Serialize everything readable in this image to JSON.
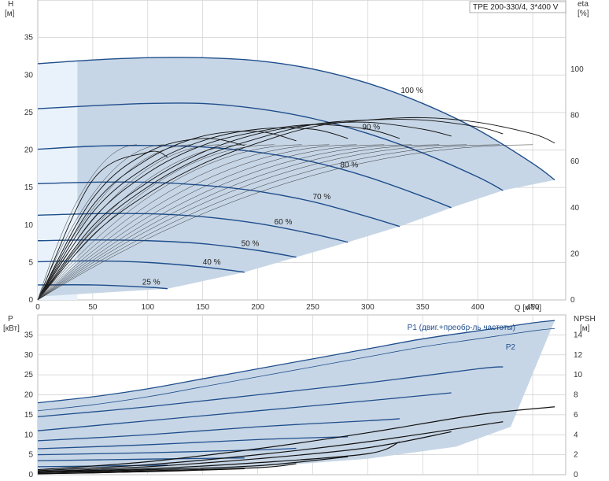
{
  "chart_title": "TPE 200-330/4, 3*400 V",
  "top": {
    "ylabel_left_name": "H",
    "ylabel_left_unit": "[м]",
    "ylabel_right_name": "eta",
    "ylabel_right_unit": "[%]",
    "xlabel": "Q [м³/ч]",
    "x_ticks": [
      "0",
      "50",
      "100",
      "150",
      "200",
      "250",
      "300",
      "350",
      "400",
      "450"
    ],
    "y_left_ticks": [
      "0",
      "5",
      "10",
      "15",
      "20",
      "25",
      "30",
      "35"
    ],
    "y_right_ticks": [
      "0",
      "20",
      "40",
      "60",
      "80",
      "100"
    ]
  },
  "bottom": {
    "ylabel_left_name": "P",
    "ylabel_left_unit": "[кВт]",
    "ylabel_right_name": "NPSH",
    "ylabel_right_unit": "[м]",
    "y_left_ticks": [
      "0",
      "5",
      "10",
      "15",
      "20",
      "25",
      "30",
      "35"
    ],
    "y_right_ticks": [
      "0",
      "2",
      "4",
      "6",
      "8",
      "10",
      "12",
      "14"
    ],
    "series_p1_label": "P1 (двиг.+преобр-ль частоты)",
    "series_p2_label": "P2"
  },
  "colors": {
    "region_fill": "#c7d6e6",
    "region_light": "#e9f2fb",
    "curve_blue": "#1f4e8c",
    "efficiency_black": "#111111",
    "grid": "#cfcfcf"
  },
  "chart_data": [
    {
      "type": "line",
      "title": "TPE 200-330/4, 3*400 V",
      "xlabel": "Q [м³/ч]",
      "ylabel": "H [м]",
      "y2label": "eta [%]",
      "xlim": [
        0,
        480
      ],
      "ylim": [
        0,
        40
      ],
      "y2lim": [
        0,
        130
      ],
      "grid": true,
      "head_curves": [
        {
          "label": "100 %",
          "x": [
            0,
            50,
            100,
            150,
            200,
            250,
            300,
            350,
            400,
            450,
            470
          ],
          "y": [
            31.5,
            32.0,
            32.3,
            32.3,
            31.9,
            30.8,
            28.9,
            26.2,
            22.7,
            18.2,
            16.0
          ]
        },
        {
          "label": "90 %",
          "x": [
            0,
            50,
            100,
            150,
            200,
            250,
            300,
            350,
            400,
            423
          ],
          "y": [
            25.5,
            25.9,
            26.2,
            26.2,
            25.5,
            24.2,
            22.2,
            19.6,
            16.4,
            14.6
          ]
        },
        {
          "label": "80 %",
          "x": [
            0,
            50,
            100,
            150,
            200,
            250,
            300,
            350,
            376
          ],
          "y": [
            20.1,
            20.5,
            20.6,
            20.4,
            19.7,
            18.4,
            16.4,
            13.8,
            12.3
          ]
        },
        {
          "label": "70 %",
          "x": [
            0,
            50,
            100,
            150,
            200,
            250,
            300,
            329
          ],
          "y": [
            15.5,
            15.7,
            15.7,
            15.3,
            14.5,
            13.1,
            11.1,
            9.8
          ]
        },
        {
          "label": "60 %",
          "x": [
            0,
            50,
            100,
            150,
            200,
            250,
            282
          ],
          "y": [
            11.3,
            11.5,
            11.5,
            11.1,
            10.2,
            8.8,
            7.7
          ]
        },
        {
          "label": "50 %",
          "x": [
            0,
            50,
            100,
            150,
            200,
            235
          ],
          "y": [
            7.9,
            8.0,
            7.9,
            7.5,
            6.6,
            5.7
          ]
        },
        {
          "label": "40 %",
          "x": [
            0,
            50,
            100,
            150,
            188
          ],
          "y": [
            5.1,
            5.2,
            5.0,
            4.4,
            3.7
          ]
        },
        {
          "label": "25 %",
          "x": [
            0,
            50,
            100,
            118
          ],
          "y": [
            2.0,
            2.0,
            1.7,
            1.5
          ]
        }
      ],
      "efficiency_curves": [
        {
          "x": [
            0,
            50,
            100,
            150,
            200,
            250,
            300,
            350,
            400,
            450,
            470
          ],
          "y": [
            0,
            28,
            46,
            59,
            68,
            75,
            78,
            79,
            77,
            72,
            68
          ]
        },
        {
          "x": [
            0,
            50,
            100,
            150,
            200,
            250,
            300,
            350,
            400,
            423
          ],
          "y": [
            0,
            30,
            49,
            62,
            70,
            76,
            78,
            78,
            75,
            72
          ]
        },
        {
          "x": [
            0,
            50,
            100,
            150,
            200,
            250,
            300,
            350,
            376
          ],
          "y": [
            0,
            32,
            51,
            64,
            72,
            76,
            77,
            74,
            71
          ]
        },
        {
          "x": [
            0,
            50,
            100,
            150,
            200,
            250,
            300,
            329
          ],
          "y": [
            0,
            35,
            55,
            67,
            73,
            76,
            74,
            70
          ]
        },
        {
          "x": [
            0,
            50,
            100,
            150,
            200,
            250,
            282
          ],
          "y": [
            0,
            38,
            58,
            69,
            74,
            74,
            70
          ]
        },
        {
          "x": [
            0,
            50,
            100,
            150,
            200,
            235
          ],
          "y": [
            0,
            41,
            61,
            71,
            73,
            69
          ]
        },
        {
          "x": [
            0,
            50,
            100,
            150,
            188
          ],
          "y": [
            0,
            44,
            64,
            70,
            67
          ]
        },
        {
          "x": [
            0,
            50,
            100,
            118
          ],
          "y": [
            0,
            52,
            64,
            62
          ]
        }
      ]
    },
    {
      "type": "area",
      "xlabel": "Q [м³/ч]",
      "ylabel": "P [кВт]",
      "y2label": "NPSH [м]",
      "xlim": [
        0,
        480
      ],
      "ylim": [
        0,
        40
      ],
      "y2lim": [
        0,
        16
      ],
      "grid": true,
      "power_p1": [
        {
          "x": [
            0,
            50,
            100,
            150,
            200,
            250,
            300,
            350,
            400,
            450,
            470
          ],
          "y": [
            18.0,
            19.5,
            21.5,
            24.0,
            26.5,
            29.0,
            31.5,
            34.0,
            36.0,
            38.0,
            38.6
          ]
        },
        {
          "x": [
            0,
            100,
            200,
            300,
            400,
            423
          ],
          "y": [
            14.5,
            17.0,
            20.0,
            23.0,
            26.5,
            27.0
          ]
        },
        {
          "x": [
            0,
            100,
            200,
            300,
            376
          ],
          "y": [
            11.0,
            13.5,
            16.0,
            18.5,
            20.5
          ]
        },
        {
          "x": [
            0,
            100,
            200,
            300,
            329
          ],
          "y": [
            8.5,
            10.0,
            12.0,
            13.5,
            14.0
          ]
        },
        {
          "x": [
            0,
            100,
            200,
            282
          ],
          "y": [
            6.5,
            7.5,
            8.8,
            9.5
          ]
        },
        {
          "x": [
            0,
            100,
            200,
            235
          ],
          "y": [
            5.0,
            5.5,
            6.2,
            6.6
          ]
        },
        {
          "x": [
            0,
            100,
            188
          ],
          "y": [
            3.5,
            3.9,
            4.2
          ]
        },
        {
          "x": [
            0,
            60,
            118
          ],
          "y": [
            2.0,
            2.2,
            2.4
          ]
        }
      ],
      "power_p2": [
        {
          "x": [
            0,
            50,
            100,
            150,
            200,
            250,
            300,
            350,
            400,
            450,
            470
          ],
          "y": [
            16.0,
            17.5,
            19.5,
            22.0,
            24.5,
            27.0,
            29.5,
            32.0,
            34.0,
            36.0,
            36.6
          ]
        }
      ],
      "npsh": [
        {
          "x": [
            0,
            100,
            200,
            300,
            400,
            470
          ],
          "y": [
            0.5,
            1.3,
            2.6,
            4.2,
            6.0,
            6.8
          ]
        },
        {
          "x": [
            0,
            100,
            200,
            300,
            423
          ],
          "y": [
            0.4,
            1.0,
            2.0,
            3.3,
            5.3
          ]
        },
        {
          "x": [
            0,
            100,
            200,
            300,
            376
          ],
          "y": [
            0.3,
            0.8,
            1.6,
            2.7,
            4.3
          ]
        },
        {
          "x": [
            0,
            100,
            200,
            300,
            329
          ],
          "y": [
            0.3,
            0.6,
            1.2,
            2.1,
            3.3
          ]
        },
        {
          "x": [
            0,
            100,
            200,
            282
          ],
          "y": [
            0.2,
            0.5,
            0.9,
            1.8
          ]
        },
        {
          "x": [
            0,
            100,
            200,
            235
          ],
          "y": [
            0.2,
            0.4,
            0.7,
            1.1
          ]
        },
        {
          "x": [
            0,
            100,
            188
          ],
          "y": [
            0.1,
            0.3,
            0.6
          ]
        },
        {
          "x": [
            0,
            60,
            118
          ],
          "y": [
            0.1,
            0.2,
            0.4
          ]
        }
      ]
    }
  ]
}
